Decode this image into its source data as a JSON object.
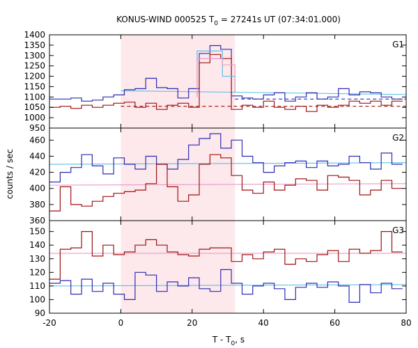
{
  "chart_data": {
    "type": "line",
    "title_main": "KONUS-WIND 000525 T",
    "title_sub": "0",
    "title_rest": " = 27241s UT (07:34:01.000)",
    "xlabel_main": "T - T",
    "xlabel_sub": "0",
    "xlabel_rest": ", s",
    "ylabel": "counts / sec",
    "xlim": [
      -20,
      80
    ],
    "x_ticks": [
      -20,
      0,
      20,
      40,
      60,
      80
    ],
    "shaded_interval": [
      0,
      32
    ],
    "colors": {
      "blue": "#2b2bb5",
      "red": "#a01010",
      "cyan": "#5bbfe6",
      "pink": "#e89ac8",
      "shade": "#fde8ec"
    },
    "bin_edges": [
      -20,
      -17,
      -14,
      -11,
      -8,
      -5,
      -2,
      1,
      4,
      7,
      10,
      13,
      16,
      19,
      22,
      25,
      28,
      31,
      34,
      37,
      40,
      43,
      46,
      49,
      52,
      55,
      58,
      61,
      64,
      67,
      70,
      73,
      76,
      79
    ],
    "panels": [
      {
        "label": "G1",
        "ylim": [
          950,
          1400
        ],
        "y_ticks": [
          950,
          1000,
          1050,
          1100,
          1150,
          1200,
          1250,
          1300,
          1350,
          1400
        ],
        "series": [
          {
            "color": "blue",
            "values": [
              1090,
              1090,
              1095,
              1080,
              1085,
              1100,
              1110,
              1135,
              1140,
              1190,
              1145,
              1140,
              1095,
              1140,
              1310,
              1348,
              1330,
              1105,
              1095,
              1090,
              1110,
              1120,
              1080,
              1100,
              1120,
              1090,
              1100,
              1140,
              1110,
              1125,
              1120,
              1100,
              1090
            ]
          },
          {
            "color": "red",
            "values": [
              1050,
              1055,
              1045,
              1060,
              1050,
              1060,
              1070,
              1075,
              1050,
              1070,
              1040,
              1060,
              1070,
              1050,
              1265,
              1305,
              1285,
              1040,
              1060,
              1050,
              1080,
              1050,
              1040,
              1055,
              1030,
              1060,
              1050,
              1060,
              1080,
              1070,
              1080,
              1060,
              1080
            ]
          }
        ],
        "pulse_fit": [
          {
            "color": "cyan",
            "x_start": 21.4,
            "x_end": 32,
            "y_top": 1322,
            "y_tail": 1200
          },
          {
            "color": "pink",
            "x_start": 21.4,
            "x_end": 32,
            "y_top": 1285,
            "y_tail": 1255
          }
        ],
        "background_fits": [
          {
            "color": "cyan",
            "style": "solid",
            "x_from": 0,
            "y_start": 1130,
            "y_end": 1112
          },
          {
            "color": "blue",
            "style": "dashed",
            "x_from": 32,
            "y_start": 1090,
            "y_end": 1090
          },
          {
            "color": "red",
            "style": "dashed",
            "x_from": 0,
            "y_start": 1055,
            "y_end": 1055
          }
        ]
      },
      {
        "label": "G2",
        "ylim": [
          360,
          475
        ],
        "y_ticks": [
          360,
          380,
          400,
          420,
          440,
          460
        ],
        "series": [
          {
            "color": "blue",
            "values": [
              408,
              420,
              426,
              442,
              428,
              418,
              438,
              430,
              424,
              440,
              430,
              424,
              436,
              454,
              462,
              468,
              450,
              460,
              440,
              432,
              420,
              428,
              432,
              434,
              426,
              434,
              428,
              430,
              440,
              432,
              424,
              444,
              430
            ]
          },
          {
            "color": "red",
            "values": [
              372,
              402,
              380,
              378,
              384,
              390,
              394,
              396,
              398,
              406,
              430,
              402,
              384,
              392,
              430,
              442,
              438,
              416,
              398,
              394,
              408,
              398,
              404,
              412,
              410,
              398,
              416,
              414,
              410,
              392,
              398,
              410,
              400
            ]
          }
        ],
        "background_fits": [
          {
            "color": "cyan",
            "style": "solid",
            "x_from": -20,
            "y_start": 430,
            "y_end": 432
          },
          {
            "color": "pink",
            "style": "solid",
            "x_from": -20,
            "y_start": 404,
            "y_end": 406
          }
        ]
      },
      {
        "label": "G3",
        "ylim": [
          90,
          158
        ],
        "y_ticks": [
          90,
          100,
          110,
          120,
          130,
          140,
          150
        ],
        "series": [
          {
            "color": "red",
            "values": [
              115,
              137,
              138,
              150,
              132,
              140,
              133,
              135,
              140,
              144,
              140,
              135,
              133,
              132,
              137,
              138,
              138,
              128,
              133,
              130,
              135,
              137,
              126,
              130,
              128,
              133,
              136,
              128,
              137,
              134,
              136,
              150,
              135
            ]
          },
          {
            "color": "blue",
            "values": [
              112,
              114,
              104,
              115,
              106,
              112,
              104,
              100,
              120,
              118,
              106,
              113,
              110,
              116,
              108,
              106,
              122,
              112,
              104,
              110,
              112,
              108,
              100,
              109,
              112,
              109,
              113,
              110,
              98,
              111,
              105,
              112,
              108
            ]
          }
        ],
        "background_fits": [
          {
            "color": "pink",
            "style": "solid",
            "x_from": -20,
            "y_start": 134,
            "y_end": 134
          },
          {
            "color": "cyan",
            "style": "solid",
            "x_from": -20,
            "y_start": 110,
            "y_end": 111
          }
        ]
      }
    ]
  }
}
